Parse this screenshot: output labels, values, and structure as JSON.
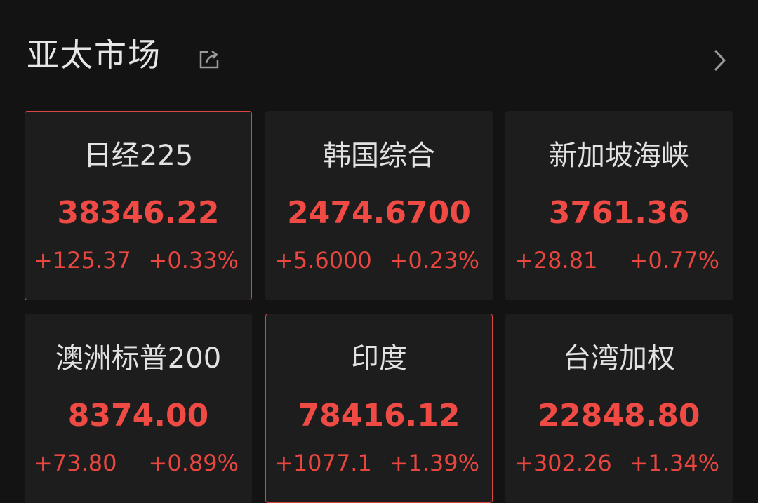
{
  "header": {
    "title": "亚太市场",
    "share_icon": "share-icon",
    "more_icon": "chevron-right-icon"
  },
  "colors": {
    "up": "#f04a45",
    "background": "#131313",
    "card": "#1d1d1d"
  },
  "cards": [
    {
      "name": "日经225",
      "price": "38346.22",
      "change": "+125.37",
      "percent": "+0.33%",
      "selected": true
    },
    {
      "name": "韩国综合",
      "price": "2474.6700",
      "change": "+5.6000",
      "percent": "+0.23%",
      "selected": false
    },
    {
      "name": "新加坡海峡",
      "price": "3761.36",
      "change": "+28.81",
      "percent": "+0.77%",
      "selected": false
    },
    {
      "name": "澳洲标普200",
      "price": "8374.00",
      "change": "+73.80",
      "percent": "+0.89%",
      "selected": false
    },
    {
      "name": "印度",
      "price": "78416.12",
      "change": "+1077.1",
      "percent": "+1.39%",
      "selected": true
    },
    {
      "name": "台湾加权",
      "price": "22848.80",
      "change": "+302.26",
      "percent": "+1.34%",
      "selected": false
    }
  ]
}
